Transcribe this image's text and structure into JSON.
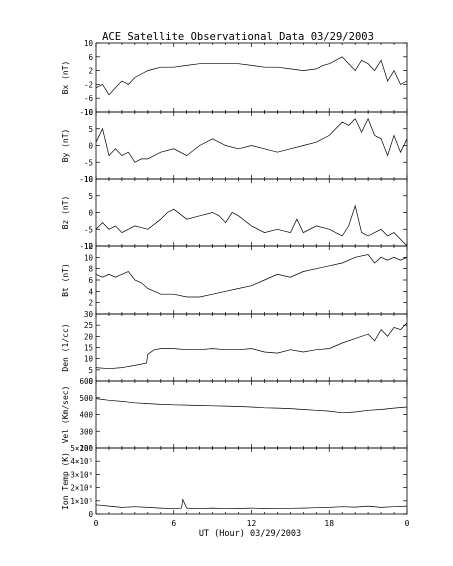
{
  "chart_data": {
    "type": "line",
    "title": "ACE Satellite Observational Data   03/29/2003",
    "xlabel": "UT (Hour)   03/29/2003",
    "x_ticks": [
      "0",
      "6",
      "12",
      "18",
      "0"
    ],
    "x_range": [
      0,
      24
    ],
    "panels": [
      {
        "ylabel": "Bx (nT)",
        "ylim": [
          -10,
          10
        ],
        "yticks": [
          "-10",
          "-6",
          "-2",
          "2",
          "6",
          "10"
        ],
        "yticks_values": [
          -10,
          -6,
          -2,
          2,
          6,
          10
        ],
        "series": [
          {
            "x": [
              0,
              0.5,
              1,
              1.5,
              2,
              2.5,
              3,
              3.5,
              4,
              4.5,
              5,
              6,
              7,
              8,
              9,
              10,
              11,
              12,
              13,
              14,
              15,
              16,
              17,
              17.5,
              18,
              18.5,
              19,
              19.5,
              20,
              20.5,
              21,
              21.5,
              22,
              22.5,
              23,
              23.5,
              24
            ],
            "values": [
              -3,
              -2,
              -5,
              -3,
              -1,
              -2,
              0,
              1,
              2,
              2.5,
              3,
              3,
              3.5,
              4,
              4,
              4,
              4,
              3.5,
              3,
              3,
              2.5,
              2,
              2.5,
              3.5,
              4,
              5,
              6,
              4,
              2,
              5,
              4,
              2,
              5,
              -1,
              2,
              -2,
              -1
            ]
          }
        ]
      },
      {
        "ylabel": "By (nT)",
        "ylim": [
          -10,
          10
        ],
        "yticks": [
          "-10",
          "-5",
          "0",
          "5",
          "10"
        ],
        "yticks_values": [
          -10,
          -5,
          0,
          5,
          10
        ],
        "series": [
          {
            "x": [
              0,
              0.5,
              1,
              1.5,
              2,
              2.5,
              3,
              3.5,
              4,
              5,
              6,
              7,
              8,
              9,
              10,
              11,
              12,
              13,
              14,
              15,
              16,
              17,
              18,
              18.5,
              19,
              19.5,
              20,
              20.5,
              21,
              21.5,
              22,
              22.5,
              23,
              23.5,
              24
            ],
            "values": [
              1,
              5,
              -3,
              -1,
              -3,
              -2,
              -5,
              -4,
              -4,
              -2,
              -1,
              -3,
              0,
              2,
              0,
              -1,
              0,
              -1,
              -2,
              -1,
              0,
              1,
              3,
              5,
              7,
              6,
              8,
              4,
              8,
              3,
              2,
              -3,
              3,
              -2,
              2
            ]
          }
        ]
      },
      {
        "ylabel": "Bz (nT)",
        "ylim": [
          -10,
          10
        ],
        "yticks": [
          "-10",
          "-5",
          "0",
          "5",
          "10"
        ],
        "yticks_values": [
          -10,
          -5,
          0,
          5,
          10
        ],
        "series": [
          {
            "x": [
              0,
              0.5,
              1,
              1.5,
              2,
              3,
              4,
              5,
              5.5,
              6,
              7,
              8,
              9,
              9.5,
              10,
              10.5,
              11,
              12,
              13,
              14,
              15,
              15.5,
              16,
              17,
              18,
              19,
              19.5,
              20,
              20.5,
              21,
              21.5,
              22,
              22.5,
              23,
              23.5,
              24
            ],
            "values": [
              -5,
              -3,
              -5,
              -4,
              -6,
              -4,
              -5,
              -2,
              0,
              1,
              -2,
              -1,
              0,
              -1,
              -3,
              0,
              -1,
              -4,
              -6,
              -5,
              -6,
              -2,
              -6,
              -4,
              -5,
              -7,
              -4,
              2,
              -6,
              -7,
              -6,
              -5,
              -7,
              -6,
              -8,
              -10
            ]
          }
        ]
      },
      {
        "ylabel": "Bt (nT)",
        "ylim": [
          0,
          12
        ],
        "yticks": [
          "2",
          "4",
          "6",
          "8",
          "10",
          "12"
        ],
        "yticks_values": [
          2,
          4,
          6,
          8,
          10,
          12
        ],
        "series": [
          {
            "x": [
              0,
              0.5,
              1,
              1.5,
              2,
              2.5,
              3,
              3.5,
              4,
              4.5,
              5,
              6,
              7,
              8,
              9,
              10,
              11,
              12,
              13,
              14,
              15,
              16,
              17,
              18,
              19,
              20,
              21,
              21.5,
              22,
              22.5,
              23,
              23.5,
              24
            ],
            "values": [
              7,
              6.5,
              7,
              6.5,
              7,
              7.5,
              6,
              5.5,
              4.5,
              4,
              3.5,
              3.5,
              3,
              3,
              3.5,
              4,
              4.5,
              5,
              6,
              7,
              6.5,
              7.5,
              8,
              8.5,
              9,
              10,
              10.5,
              9,
              10,
              9.5,
              10,
              9.5,
              10
            ]
          }
        ]
      },
      {
        "ylabel": "Den (1/cc)",
        "ylim": [
          0,
          30
        ],
        "yticks": [
          "0",
          "5",
          "10",
          "15",
          "20",
          "25",
          "30"
        ],
        "yticks_values": [
          0,
          5,
          10,
          15,
          20,
          25,
          30
        ],
        "series": [
          {
            "x": [
              0,
              1,
              2,
              3,
              3.9,
              4,
              4.5,
              5,
              6,
              7,
              8,
              9,
              10,
              11,
              12,
              13,
              14,
              15,
              16,
              17,
              18,
              19,
              20,
              21,
              21.5,
              22,
              22.5,
              23,
              23.5,
              24
            ],
            "values": [
              6,
              5.5,
              6,
              7,
              8,
              12,
              14,
              14.5,
              14.5,
              14,
              14,
              14.5,
              14,
              14,
              14.5,
              13,
              12.5,
              14,
              13,
              14,
              14.5,
              17,
              19,
              21,
              18,
              23,
              20,
              24,
              23,
              26
            ]
          }
        ]
      },
      {
        "ylabel": "Vel (Km/sec)",
        "ylim": [
          200,
          600
        ],
        "yticks": [
          "200",
          "300",
          "400",
          "500",
          "600"
        ],
        "yticks_values": [
          200,
          300,
          400,
          500,
          600
        ],
        "series": [
          {
            "x": [
              0,
              1,
              2,
              3,
              4,
              5,
              6,
              7,
              8,
              9,
              10,
              11,
              12,
              13,
              14,
              15,
              16,
              17,
              18,
              19,
              20,
              21,
              22,
              23,
              24
            ],
            "values": [
              495,
              485,
              478,
              470,
              465,
              460,
              458,
              456,
              454,
              452,
              450,
              448,
              445,
              440,
              438,
              435,
              430,
              425,
              420,
              410,
              415,
              425,
              430,
              438,
              445
            ]
          }
        ]
      },
      {
        "ylabel": "Ion Temp (K)",
        "ylim": [
          0,
          500000
        ],
        "yticks": [
          "0",
          "1×10⁵",
          "2×10⁵",
          "3×10⁵",
          "4×10⁵",
          "5×10⁵"
        ],
        "yticks_values": [
          0,
          100000,
          200000,
          300000,
          400000,
          500000
        ],
        "series": [
          {
            "x": [
              0,
              1,
              2,
              3,
              4,
              5,
              6,
              6.6,
              6.7,
              7,
              8,
              9,
              10,
              11,
              12,
              13,
              14,
              15,
              16,
              17,
              18,
              19,
              20,
              21,
              22,
              23,
              24
            ],
            "values": [
              70000,
              60000,
              50000,
              55000,
              50000,
              45000,
              40000,
              45000,
              110000,
              45000,
              40000,
              45000,
              40000,
              42000,
              45000,
              42000,
              40000,
              43000,
              45000,
              48000,
              50000,
              55000,
              52000,
              60000,
              50000,
              55000,
              60000
            ]
          }
        ]
      }
    ]
  }
}
